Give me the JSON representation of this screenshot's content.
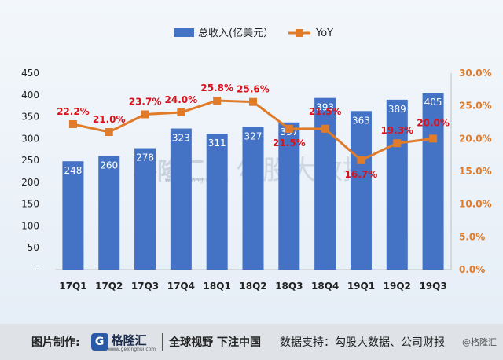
{
  "chart_data": {
    "type": "bar+line",
    "categories": [
      "17Q1",
      "17Q2",
      "17Q3",
      "17Q4",
      "18Q1",
      "18Q2",
      "18Q3",
      "18Q4",
      "19Q1",
      "19Q2",
      "19Q3"
    ],
    "series": [
      {
        "name": "总收入(亿美元）",
        "type": "bar",
        "axis": "left",
        "values": [
          248,
          260,
          278,
          323,
          311,
          327,
          337,
          393,
          363,
          389,
          405
        ],
        "labels": [
          "248",
          "260",
          "278",
          "323",
          "311",
          "327",
          "337",
          "393",
          "363",
          "389",
          "405"
        ],
        "color": "#4472c4"
      },
      {
        "name": "YoY",
        "type": "line",
        "axis": "right",
        "values": [
          22.2,
          21.0,
          23.7,
          24.0,
          25.8,
          25.6,
          21.5,
          21.5,
          16.7,
          19.3,
          20.0
        ],
        "labels": [
          "22.2%",
          "21.0%",
          "23.7%",
          "24.0%",
          "25.8%",
          "25.6%",
          "21.5%",
          "21.5%",
          "16.7%",
          "19.3%",
          "20.0%"
        ],
        "color": "#e07b2a",
        "label_color": "#d9121b"
      }
    ],
    "y_left": {
      "ticks": [
        "-",
        "50",
        "100",
        "150",
        "200",
        "250",
        "300",
        "350",
        "400",
        "450"
      ],
      "range": [
        0,
        450
      ]
    },
    "y_right": {
      "ticks": [
        "0.0%",
        "5.0%",
        "10.0%",
        "15.0%",
        "20.0%",
        "25.0%",
        "30.0%"
      ],
      "range": [
        0,
        30
      ],
      "color": "#e07b2a"
    },
    "legend_position": "top-center"
  },
  "watermark": {
    "logo_text": "格隆汇",
    "logo_url": "www.gelonghui.com",
    "text": "勾股大数据"
  },
  "footer": {
    "made_by_label": "图片制作:",
    "logo_letter": "G",
    "logo_text": "格隆汇",
    "logo_url": "www.gelonghui.com",
    "slogan": "全球视野 下注中国",
    "source": "数据支持：勾股大数据、公司财报",
    "brand": "@格隆汇"
  }
}
